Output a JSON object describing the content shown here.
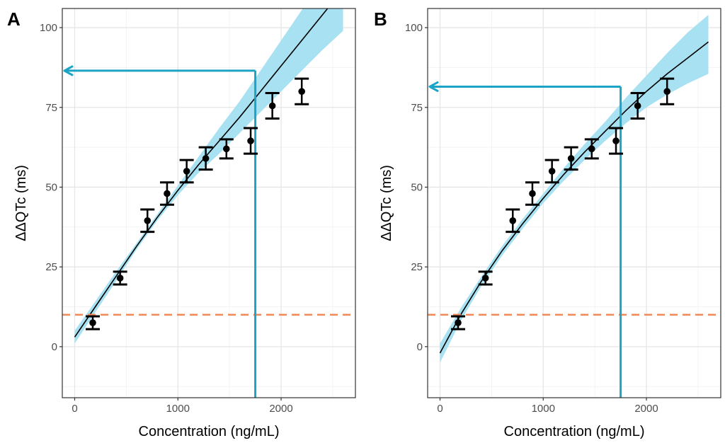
{
  "colors": {
    "band": "#a7e1f2",
    "fit_line": "#000000",
    "threshold": "#f08a5d",
    "arrow": "#1ba4c4",
    "grid_major": "#e6e6e6",
    "grid_minor": "#f3f3f3",
    "frame": "#333333",
    "points": "#000000"
  },
  "chart_data": [
    {
      "type": "scatter",
      "panel_label": "A",
      "xlabel": "Concentration (ng/mL)",
      "ylabel": "ΔΔQTc (ms)",
      "xlim": [
        -120,
        2720
      ],
      "ylim": [
        -16,
        106
      ],
      "xticks": [
        0,
        1000,
        2000
      ],
      "yticks": [
        0,
        25,
        50,
        75,
        100
      ],
      "xtick_labels": [
        "0",
        "1000",
        "2000"
      ],
      "ytick_labels": [
        "0",
        "25",
        "50",
        "75",
        "100"
      ],
      "grid": true,
      "points": {
        "x": [
          175,
          440,
          705,
          895,
          1085,
          1270,
          1470,
          1705,
          1915,
          2200
        ],
        "y": [
          7.5,
          21.5,
          39.5,
          48,
          55,
          59,
          62,
          64.5,
          75.5,
          80
        ],
        "lower": [
          5.5,
          19.5,
          36,
          44.5,
          51.5,
          55.5,
          59,
          60.5,
          71.5,
          76
        ],
        "upper": [
          9.5,
          23.5,
          43,
          51.5,
          58.5,
          62.5,
          65,
          68.5,
          79.5,
          84
        ]
      },
      "fit": {
        "x": [
          0,
          200,
          400,
          600,
          800,
          1000,
          1200,
          1400,
          1600,
          1800,
          2000,
          2200,
          2400,
          2600
        ],
        "y": [
          3,
          12.5,
          22,
          31.5,
          40.5,
          49,
          57,
          64.5,
          72,
          80,
          88,
          96,
          104,
          112
        ],
        "lower": [
          1,
          10.8,
          20.5,
          30.5,
          39.5,
          47.5,
          54.5,
          60.5,
          67,
          73.5,
          80,
          86.5,
          93,
          99
        ],
        "upper": [
          5,
          14.2,
          23.5,
          32.5,
          41.5,
          50.5,
          59.5,
          68.5,
          77,
          86.5,
          96,
          105.5,
          115,
          124
        ]
      },
      "threshold_y": 10,
      "arrow": {
        "x_at": 1750,
        "y_at": 86.5
      }
    },
    {
      "type": "scatter",
      "panel_label": "B",
      "xlabel": "Concentration (ng/mL)",
      "ylabel": "ΔΔQTc (ms)",
      "xlim": [
        -120,
        2720
      ],
      "ylim": [
        -16,
        106
      ],
      "xticks": [
        0,
        1000,
        2000
      ],
      "yticks": [
        0,
        25,
        50,
        75,
        100
      ],
      "xtick_labels": [
        "0",
        "1000",
        "2000"
      ],
      "ytick_labels": [
        "0",
        "25",
        "50",
        "75",
        "100"
      ],
      "grid": true,
      "points": {
        "x": [
          175,
          440,
          705,
          895,
          1085,
          1270,
          1470,
          1705,
          1915,
          2200
        ],
        "y": [
          7.5,
          21.5,
          39.5,
          48,
          55,
          59,
          62,
          64.5,
          75.5,
          80
        ],
        "lower": [
          5.5,
          19.5,
          36,
          44.5,
          51.5,
          55.5,
          59,
          60.5,
          71.5,
          76
        ],
        "upper": [
          9.5,
          23.5,
          43,
          51.5,
          58.5,
          62.5,
          65,
          68.5,
          79.5,
          84
        ]
      },
      "fit": {
        "x": [
          0,
          200,
          400,
          600,
          800,
          1000,
          1200,
          1400,
          1600,
          1800,
          2000,
          2200,
          2400,
          2600
        ],
        "y": [
          -2,
          10,
          20.5,
          30,
          38.5,
          46.5,
          54,
          61,
          67.5,
          74,
          80,
          85.5,
          90.5,
          95.5
        ],
        "lower": [
          -5,
          8,
          19,
          28.5,
          37,
          45,
          52,
          58.5,
          64.5,
          70,
          75,
          79,
          82.5,
          85.5
        ],
        "upper": [
          1,
          12,
          22,
          31.5,
          40,
          48,
          56,
          63.5,
          70.5,
          78,
          85,
          92,
          98.5,
          104
        ]
      },
      "threshold_y": 10,
      "arrow": {
        "x_at": 1750,
        "y_at": 81.5
      }
    }
  ]
}
